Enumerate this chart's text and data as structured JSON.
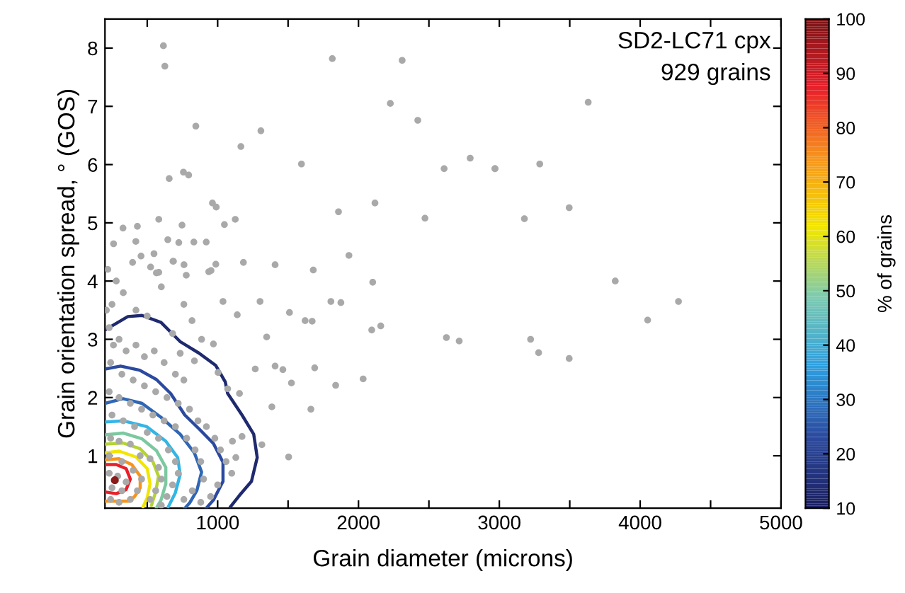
{
  "chart_data": {
    "type": "scatter",
    "xlabel": "Grain diameter (microns)",
    "ylabel": "Grain orientation spread, ° (GOS)",
    "clabel": "% of grains",
    "annotations": [
      "SD2-LC71 cpx",
      "929 grains"
    ],
    "xlim": [
      200,
      5000
    ],
    "ylim": [
      0.1,
      8.5
    ],
    "xticks": [
      {
        "value": 500,
        "label": null
      },
      1000,
      {
        "value": 1500,
        "label": null
      },
      2000,
      {
        "value": 2500,
        "label": null
      },
      3000,
      {
        "value": 3500,
        "label": null
      },
      4000,
      {
        "value": 4500,
        "label": null
      },
      5000
    ],
    "yticks": [
      1,
      2,
      3,
      4,
      5,
      6,
      7,
      8
    ],
    "clim": [
      10,
      100
    ],
    "cticks": [
      10,
      20,
      30,
      40,
      50,
      60,
      70,
      80,
      90,
      100
    ],
    "grid": false,
    "legend": false,
    "marker": "circle",
    "series": [
      {
        "color": "#a9a9a9",
        "x": [
          615,
          625,
          845,
          1307,
          1165,
          1595,
          1814,
          2310,
          2226,
          2421,
          2608,
          2793,
          2969,
          656,
          757,
          794,
          963,
          990,
          582,
          1125,
          1048,
          1858,
          2117,
          2472,
          328,
          430,
          747,
          261,
          419,
          646,
          724,
          831,
          919,
          456,
          548,
          396,
          686,
          761,
          987,
          1183,
          1408,
          1932,
          1679,
          524,
          582,
          937,
          3631,
          2969,
          3287,
          3496,
          3178,
          3823,
          4272,
          4053,
          3222,
          3279,
          3496,
          2101,
          1804,
          1875,
          1510,
          1301,
          1621,
          1671,
          1348,
          2094,
          2158,
          2624,
          2715,
          1408,
          1463,
          1689,
          1267,
          1524,
          1838,
          2033,
          1155,
          1385,
          1662,
          1314,
          1504,
          1129,
          1173,
          1105,
          683,
          565,
          777,
          953,
          1038,
          1139,
          818,
          886,
          970,
          734,
          835,
          1003,
          1071,
          230,
          260,
          300,
          350,
          420,
          480,
          550,
          620,
          700,
          760,
          240,
          320,
          400,
          480,
          560,
          640,
          720,
          800,
          860,
          920,
          980,
          1020,
          1060,
          1100,
          1000,
          950,
          880,
          230,
          300,
          380,
          460,
          540,
          620,
          700,
          780,
          840,
          880,
          900,
          820,
          760,
          250,
          330,
          410,
          500,
          580,
          650,
          700,
          720,
          680,
          640,
          600,
          240,
          300,
          380,
          450,
          520,
          580,
          600,
          560,
          520,
          230,
          320,
          400,
          460,
          430,
          380,
          300,
          240,
          230,
          290,
          350,
          250,
          320,
          210,
          250,
          330,
          420,
          500,
          600,
          280,
          220,
          760,
          680
        ],
        "values": [
          8.04,
          7.69,
          6.66,
          6.58,
          6.31,
          6.01,
          7.82,
          7.79,
          7.05,
          6.76,
          5.93,
          6.11,
          5.93,
          5.76,
          5.87,
          5.82,
          5.34,
          5.27,
          5.06,
          5.06,
          4.97,
          5.19,
          5.34,
          5.08,
          4.91,
          4.94,
          4.96,
          4.64,
          4.68,
          4.71,
          4.66,
          4.67,
          4.67,
          4.43,
          4.47,
          4.32,
          4.34,
          4.28,
          4.29,
          4.32,
          4.28,
          4.44,
          4.19,
          4.24,
          4.15,
          4.16,
          7.07,
          5.93,
          6.01,
          5.26,
          5.07,
          4.0,
          3.65,
          3.33,
          3.0,
          2.77,
          2.67,
          3.98,
          3.65,
          3.63,
          3.46,
          3.65,
          3.32,
          3.31,
          3.04,
          3.16,
          3.23,
          3.03,
          2.97,
          2.54,
          2.48,
          2.51,
          2.49,
          2.25,
          2.21,
          2.32,
          2.07,
          1.84,
          1.8,
          1.19,
          0.98,
          0.97,
          1.33,
          1.25,
          4.34,
          4.14,
          4.1,
          4.18,
          3.65,
          3.42,
          3.32,
          3.0,
          2.92,
          2.76,
          2.63,
          2.43,
          2.15,
          3.2,
          2.9,
          3.0,
          2.8,
          2.9,
          2.7,
          2.8,
          2.6,
          2.4,
          2.3,
          2.6,
          2.4,
          2.3,
          2.2,
          2.1,
          2.0,
          1.9,
          1.8,
          1.6,
          1.5,
          1.3,
          1.1,
          0.9,
          0.7,
          0.5,
          0.3,
          0.2,
          2.1,
          2.0,
          1.9,
          1.8,
          1.7,
          1.6,
          1.5,
          1.3,
          1.1,
          0.9,
          0.6,
          0.4,
          0.25,
          1.7,
          1.6,
          1.5,
          1.4,
          1.3,
          1.1,
          0.9,
          0.7,
          0.5,
          0.3,
          0.15,
          1.3,
          1.25,
          1.2,
          1.0,
          0.95,
          0.8,
          0.6,
          0.4,
          0.25,
          1.0,
          0.9,
          0.75,
          0.6,
          0.4,
          0.25,
          0.2,
          0.25,
          0.7,
          0.65,
          0.55,
          0.45,
          0.4,
          3.5,
          3.6,
          3.8,
          3.5,
          3.4,
          3.9,
          4.0,
          4.2,
          3.6,
          3.1
        ]
      },
      {
        "type": "line",
        "marker": "none",
        "color": "#1f2a6e",
        "x": [
          200,
          362,
          463,
          598,
          734,
          869,
          987,
          1054,
          1071,
          1173,
          1256,
          1281,
          1240,
          1155,
          1089
        ],
        "values": [
          3.16,
          3.39,
          3.41,
          3.29,
          2.96,
          2.76,
          2.55,
          2.27,
          2.07,
          1.7,
          1.37,
          0.97,
          0.56,
          0.32,
          0.12
        ]
      },
      {
        "type": "line",
        "marker": "none",
        "color": "#2b4a9f",
        "x": [
          200,
          311,
          446,
          565,
          666,
          767,
          869,
          970,
          1038,
          1038,
          970,
          919
        ],
        "values": [
          2.49,
          2.54,
          2.47,
          2.31,
          2.07,
          1.7,
          1.46,
          1.21,
          0.89,
          0.56,
          0.24,
          0.1
        ]
      },
      {
        "type": "line",
        "marker": "none",
        "color": "#2f66b5",
        "x": [
          200,
          328,
          463,
          598,
          734,
          835,
          886,
          852,
          801,
          767
        ],
        "values": [
          1.9,
          1.98,
          1.9,
          1.66,
          1.37,
          1.05,
          0.72,
          0.4,
          0.19,
          0.1
        ]
      },
      {
        "type": "line",
        "marker": "none",
        "color": "#33b5e5",
        "x": [
          200,
          328,
          497,
          632,
          716,
          734,
          699,
          649
        ],
        "values": [
          1.58,
          1.6,
          1.5,
          1.25,
          0.97,
          0.68,
          0.36,
          0.12
        ]
      },
      {
        "type": "line",
        "marker": "none",
        "color": "#7cc8a0",
        "x": [
          200,
          328,
          463,
          565,
          632,
          632,
          598,
          565
        ],
        "values": [
          1.36,
          1.39,
          1.29,
          1.09,
          0.8,
          0.52,
          0.24,
          0.1
        ]
      },
      {
        "type": "line",
        "marker": "none",
        "color": "#b5d334",
        "x": [
          200,
          328,
          450,
          540,
          580,
          560,
          530
        ],
        "values": [
          1.2,
          1.22,
          1.12,
          0.9,
          0.65,
          0.38,
          0.15
        ]
      },
      {
        "type": "line",
        "marker": "none",
        "color": "#f2e600",
        "x": [
          200,
          300,
          420,
          500,
          520,
          500,
          470
        ],
        "values": [
          1.05,
          1.08,
          0.98,
          0.78,
          0.52,
          0.28,
          0.12
        ]
      },
      {
        "type": "line",
        "marker": "none",
        "color": "#f7941d",
        "x": [
          200,
          300,
          390,
          450,
          450,
          410,
          370,
          200
        ],
        "values": [
          0.93,
          0.95,
          0.85,
          0.65,
          0.45,
          0.3,
          0.22,
          0.22
        ]
      },
      {
        "type": "line",
        "marker": "none",
        "color": "#e8202a",
        "x": [
          200,
          280,
          350,
          380,
          350,
          280,
          200
        ],
        "values": [
          0.85,
          0.85,
          0.78,
          0.6,
          0.42,
          0.35,
          0.38
        ]
      },
      {
        "color": "#8b1a1a",
        "x": [
          270
        ],
        "values": [
          0.58
        ]
      }
    ]
  }
}
